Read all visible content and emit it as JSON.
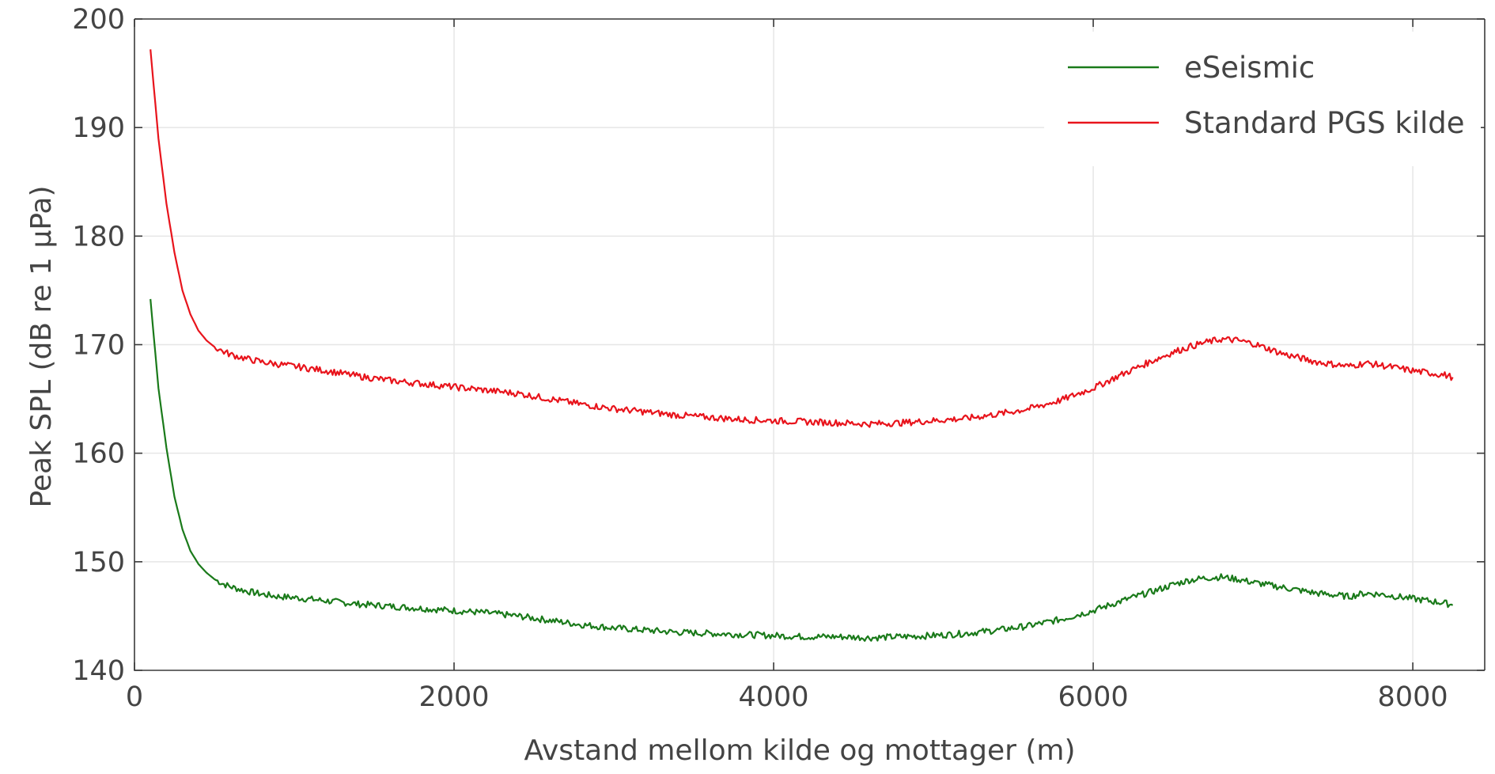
{
  "chart_data": {
    "type": "line",
    "xlabel": "Avstand mellom kilde og mottager (m)",
    "ylabel": "Peak SPL (dB re 1 µPa)",
    "xlim": [
      0,
      8450
    ],
    "ylim": [
      140,
      200
    ],
    "xticks": [
      0,
      2000,
      4000,
      6000,
      8000
    ],
    "yticks": [
      140,
      150,
      160,
      170,
      180,
      190,
      200
    ],
    "grid": true,
    "legend_position": "top-right",
    "series": [
      {
        "name": "eSeismic",
        "color": "#1a7a1a",
        "x": [
          100,
          150,
          200,
          250,
          300,
          350,
          400,
          450,
          500,
          550,
          600,
          700,
          800,
          900,
          1000,
          1200,
          1400,
          1600,
          1800,
          2000,
          2200,
          2400,
          2600,
          2800,
          3000,
          3200,
          3400,
          3600,
          3800,
          4000,
          4200,
          4400,
          4600,
          4800,
          5000,
          5200,
          5400,
          5600,
          5800,
          6000,
          6200,
          6400,
          6500,
          6600,
          6700,
          6800,
          6900,
          7000,
          7200,
          7400,
          7600,
          7700,
          7800,
          8000,
          8200,
          8250
        ],
        "y": [
          174.2,
          166.0,
          160.5,
          156.0,
          153.0,
          151.0,
          149.8,
          149.0,
          148.4,
          148.0,
          147.7,
          147.3,
          147.0,
          146.8,
          146.7,
          146.4,
          146.1,
          145.9,
          145.7,
          145.5,
          145.3,
          145.0,
          144.6,
          144.2,
          143.9,
          143.7,
          143.5,
          143.4,
          143.3,
          143.2,
          143.1,
          143.1,
          143.0,
          143.1,
          143.2,
          143.4,
          143.7,
          144.1,
          144.7,
          145.5,
          146.5,
          147.4,
          147.9,
          148.3,
          148.5,
          148.6,
          148.4,
          148.1,
          147.6,
          147.1,
          146.8,
          147.1,
          147.0,
          146.6,
          146.2,
          146.0
        ]
      },
      {
        "name": "Standard PGS kilde",
        "color": "#e8141c",
        "x": [
          100,
          150,
          200,
          250,
          300,
          350,
          400,
          450,
          500,
          550,
          600,
          700,
          800,
          900,
          1000,
          1200,
          1400,
          1600,
          1800,
          2000,
          2200,
          2400,
          2600,
          2800,
          3000,
          3200,
          3400,
          3600,
          3800,
          4000,
          4200,
          4400,
          4600,
          4800,
          5000,
          5200,
          5400,
          5600,
          5800,
          6000,
          6200,
          6400,
          6500,
          6600,
          6700,
          6800,
          6900,
          7000,
          7200,
          7400,
          7600,
          7700,
          7800,
          8000,
          8200,
          8250
        ],
        "y": [
          197.2,
          189.0,
          183.0,
          178.5,
          175.0,
          172.8,
          171.3,
          170.4,
          169.8,
          169.4,
          169.1,
          168.7,
          168.4,
          168.2,
          168.0,
          167.6,
          167.1,
          166.7,
          166.4,
          166.1,
          165.8,
          165.5,
          165.0,
          164.5,
          164.1,
          163.8,
          163.5,
          163.3,
          163.1,
          163.0,
          162.9,
          162.8,
          162.7,
          162.8,
          163.0,
          163.2,
          163.6,
          164.1,
          164.9,
          166.0,
          167.4,
          168.7,
          169.3,
          169.8,
          170.2,
          170.5,
          170.4,
          170.1,
          169.1,
          168.4,
          168.0,
          168.3,
          168.1,
          167.6,
          167.2,
          167.0
        ]
      }
    ]
  }
}
